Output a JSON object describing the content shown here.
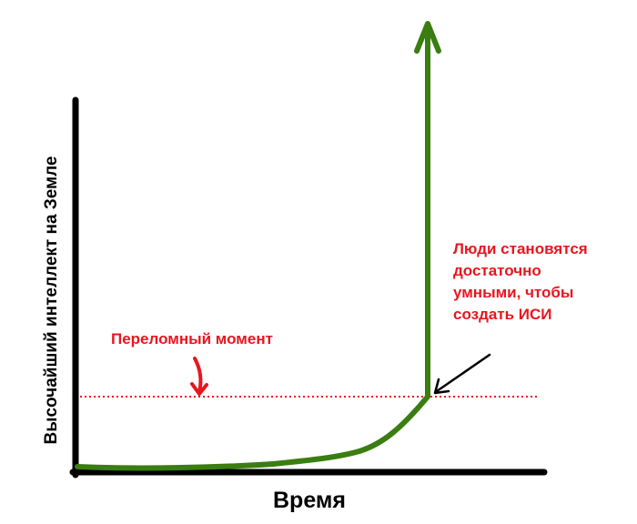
{
  "axes": {
    "y_label": "Высочайший интеллект на Земле",
    "x_label": "Время"
  },
  "annotations": {
    "threshold": "Переломный момент",
    "note": [
      "Люди становятся",
      "достаточно",
      "умными, чтобы",
      "создать ИСИ"
    ]
  }
}
